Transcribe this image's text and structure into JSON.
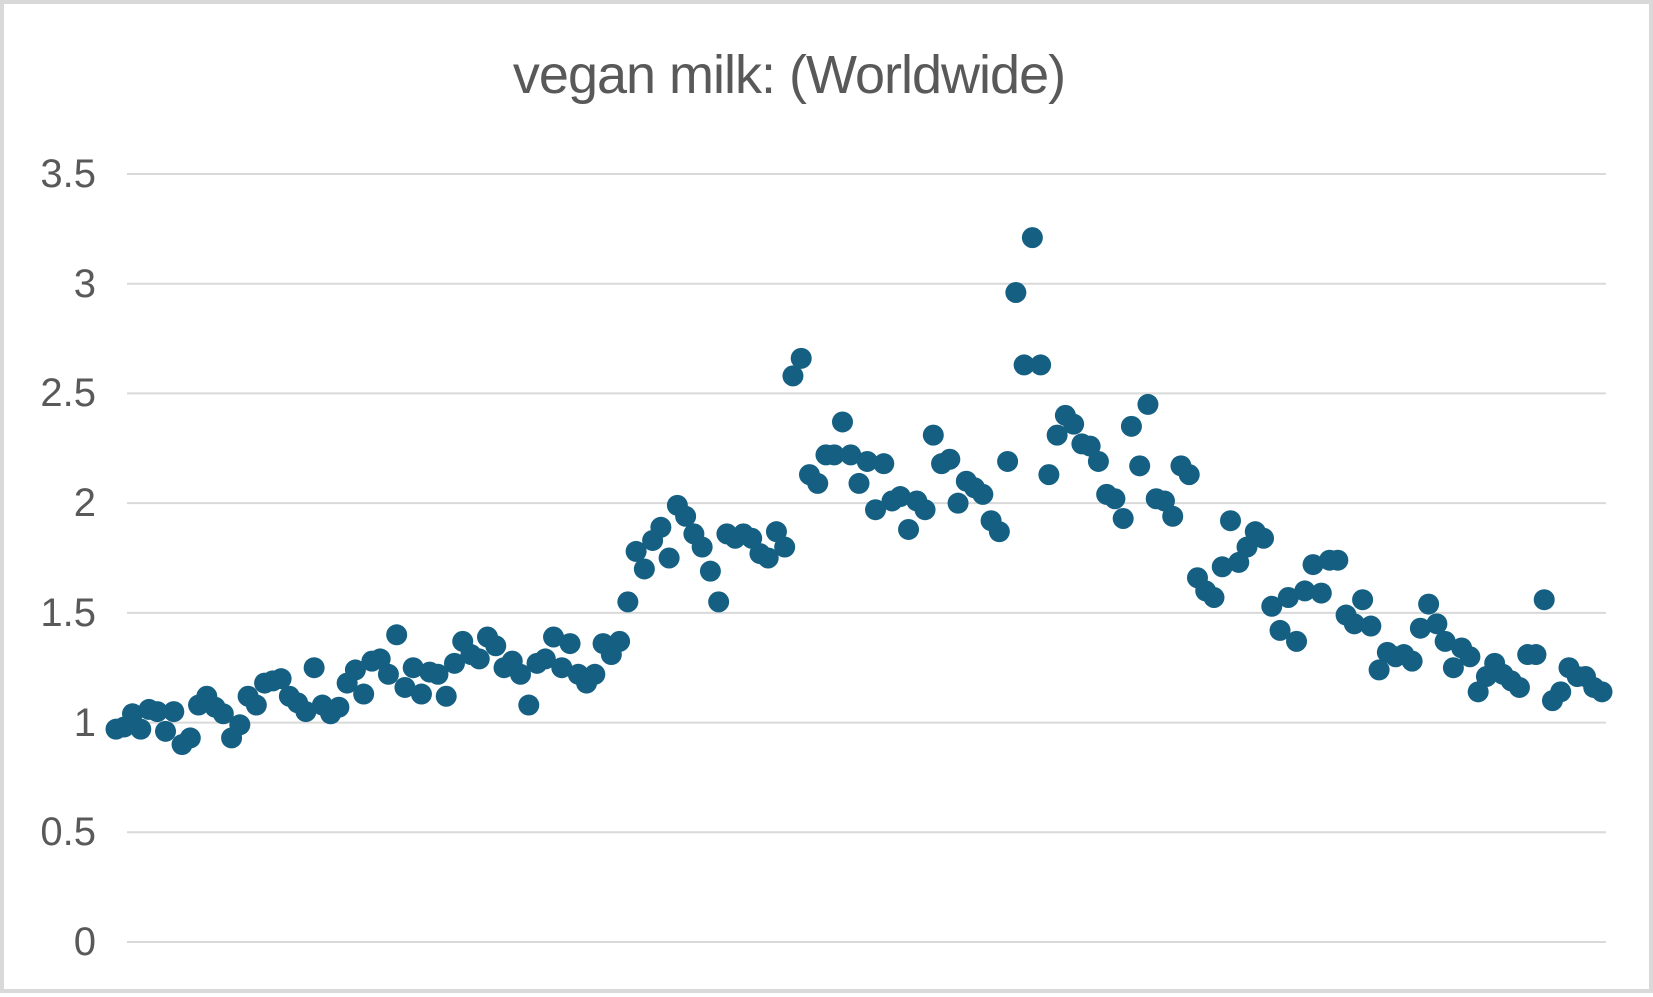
{
  "title": "vegan milk: (Worldwide)",
  "colors": {
    "marker": "#156082",
    "gridline": "#D9D9D9",
    "axis_text": "#595959",
    "title_text": "#595959",
    "frame_border": "#D9D9D9",
    "background": "#ffffff"
  },
  "chart_data": {
    "type": "scatter",
    "title": "vegan milk: (Worldwide)",
    "xlabel": "",
    "ylabel": "",
    "ylim": [
      0,
      3.5
    ],
    "ytick_values": [
      0,
      0.5,
      1,
      1.5,
      2,
      2.5,
      3,
      3.5
    ],
    "ytick_labels": [
      "0",
      "0.5",
      "1",
      "1.5",
      "2",
      "2.5",
      "3",
      "3.5"
    ],
    "x_tick_labels_visible": false,
    "grid": true,
    "legend_position": "none",
    "marker_shape": "circle",
    "values": [
      0.97,
      0.98,
      1.04,
      0.97,
      1.06,
      1.05,
      0.96,
      1.05,
      0.9,
      0.93,
      1.08,
      1.12,
      1.07,
      1.04,
      0.93,
      0.99,
      1.12,
      1.08,
      1.18,
      1.19,
      1.2,
      1.12,
      1.09,
      1.05,
      1.25,
      1.08,
      1.04,
      1.07,
      1.18,
      1.24,
      1.13,
      1.28,
      1.29,
      1.22,
      1.4,
      1.16,
      1.25,
      1.13,
      1.23,
      1.22,
      1.12,
      1.27,
      1.37,
      1.31,
      1.29,
      1.39,
      1.35,
      1.25,
      1.28,
      1.22,
      1.08,
      1.27,
      1.29,
      1.39,
      1.25,
      1.36,
      1.22,
      1.18,
      1.22,
      1.36,
      1.31,
      1.37,
      1.55,
      1.78,
      1.7,
      1.83,
      1.89,
      1.75,
      1.99,
      1.94,
      1.86,
      1.8,
      1.69,
      1.55,
      1.86,
      1.84,
      1.86,
      1.84,
      1.77,
      1.75,
      1.87,
      1.8,
      2.58,
      2.66,
      2.13,
      2.09,
      2.22,
      2.22,
      2.37,
      2.22,
      2.09,
      2.19,
      1.97,
      2.18,
      2.01,
      2.03,
      1.88,
      2.01,
      1.97,
      2.31,
      2.18,
      2.2,
      2.0,
      2.1,
      2.07,
      2.04,
      1.92,
      1.87,
      2.19,
      2.96,
      2.63,
      3.21,
      2.63,
      2.13,
      2.31,
      2.4,
      2.36,
      2.27,
      2.26,
      2.19,
      2.04,
      2.02,
      1.93,
      2.35,
      2.17,
      2.45,
      2.02,
      2.01,
      1.94,
      2.17,
      2.13,
      1.66,
      1.6,
      1.57,
      1.71,
      1.92,
      1.73,
      1.8,
      1.87,
      1.84,
      1.53,
      1.42,
      1.57,
      1.37,
      1.6,
      1.72,
      1.59,
      1.74,
      1.74,
      1.49,
      1.45,
      1.56,
      1.44,
      1.24,
      1.32,
      1.3,
      1.31,
      1.28,
      1.43,
      1.54,
      1.45,
      1.37,
      1.25,
      1.34,
      1.3,
      1.14,
      1.21,
      1.27,
      1.22,
      1.19,
      1.16,
      1.31,
      1.31,
      1.56,
      1.1,
      1.14,
      1.25,
      1.21,
      1.21,
      1.16,
      1.14
    ]
  }
}
